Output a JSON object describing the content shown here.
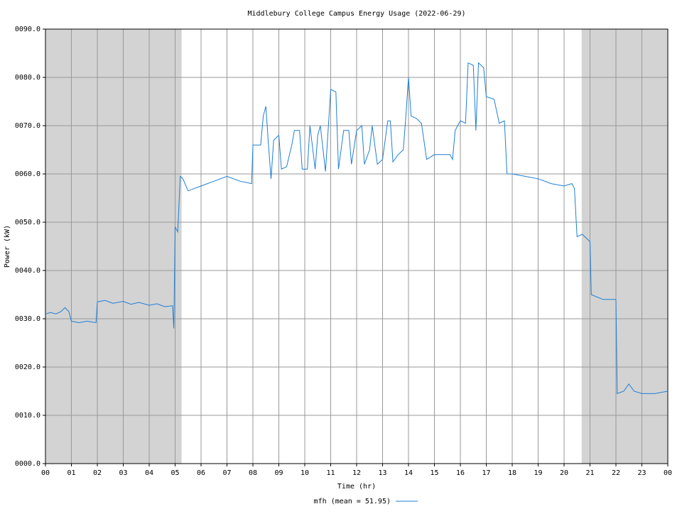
{
  "chart_data": {
    "type": "line",
    "title": "Middlebury College Campus Energy Usage (2022-06-29)",
    "x_label": "Time (hr)",
    "y_label": "Power (kW)",
    "xlim": [
      0,
      24
    ],
    "ylim": [
      0,
      90
    ],
    "xticks": [
      {
        "value": 0,
        "label": "00"
      },
      {
        "value": 1,
        "label": "01"
      },
      {
        "value": 2,
        "label": "02"
      },
      {
        "value": 3,
        "label": "03"
      },
      {
        "value": 4,
        "label": "04"
      },
      {
        "value": 5,
        "label": "05"
      },
      {
        "value": 6,
        "label": "06"
      },
      {
        "value": 7,
        "label": "07"
      },
      {
        "value": 8,
        "label": "08"
      },
      {
        "value": 9,
        "label": "09"
      },
      {
        "value": 10,
        "label": "10"
      },
      {
        "value": 11,
        "label": "11"
      },
      {
        "value": 12,
        "label": "12"
      },
      {
        "value": 13,
        "label": "13"
      },
      {
        "value": 14,
        "label": "14"
      },
      {
        "value": 15,
        "label": "15"
      },
      {
        "value": 16,
        "label": "16"
      },
      {
        "value": 17,
        "label": "17"
      },
      {
        "value": 18,
        "label": "18"
      },
      {
        "value": 19,
        "label": "19"
      },
      {
        "value": 20,
        "label": "20"
      },
      {
        "value": 21,
        "label": "21"
      },
      {
        "value": 22,
        "label": "22"
      },
      {
        "value": 23,
        "label": "23"
      },
      {
        "value": 24,
        "label": "00"
      }
    ],
    "yticks": [
      {
        "value": 0,
        "label": "0000.0"
      },
      {
        "value": 10,
        "label": "0010.0"
      },
      {
        "value": 20,
        "label": "0020.0"
      },
      {
        "value": 30,
        "label": "0030.0"
      },
      {
        "value": 40,
        "label": "0040.0"
      },
      {
        "value": 50,
        "label": "0050.0"
      },
      {
        "value": 60,
        "label": "0060.0"
      },
      {
        "value": 70,
        "label": "0070.0"
      },
      {
        "value": 80,
        "label": "0080.0"
      },
      {
        "value": 90,
        "label": "0090.0"
      }
    ],
    "grid": true,
    "shaded_regions": [
      [
        0,
        5.25
      ],
      [
        20.68,
        24
      ]
    ],
    "shade_color": "#d3d3d3",
    "x": [
      0,
      0.2,
      0.4,
      0.6,
      0.75,
      0.9,
      1.0,
      1.3,
      1.6,
      1.95,
      2.0,
      2.3,
      2.6,
      3.0,
      3.3,
      3.6,
      4.0,
      4.3,
      4.6,
      4.9,
      4.95,
      5.0,
      5.1,
      5.2,
      5.3,
      5.5,
      6.0,
      6.5,
      7.0,
      7.5,
      7.95,
      8.0,
      8.3,
      8.4,
      8.5,
      8.6,
      8.7,
      8.8,
      9.0,
      9.1,
      9.3,
      9.5,
      9.6,
      9.8,
      9.9,
      10.1,
      10.2,
      10.4,
      10.5,
      10.6,
      10.8,
      11.0,
      11.2,
      11.3,
      11.5,
      11.7,
      11.8,
      12.0,
      12.2,
      12.3,
      12.5,
      12.6,
      12.8,
      13.0,
      13.2,
      13.3,
      13.4,
      13.6,
      13.8,
      13.9,
      14.0,
      14.1,
      14.3,
      14.5,
      14.7,
      15.0,
      15.3,
      15.6,
      15.7,
      15.8,
      16.0,
      16.2,
      16.3,
      16.5,
      16.6,
      16.7,
      16.9,
      17.0,
      17.3,
      17.5,
      17.7,
      17.8,
      18.0,
      18.5,
      19.0,
      19.5,
      20.0,
      20.3,
      20.4,
      20.5,
      20.7,
      21.0,
      21.05,
      21.5,
      22.0,
      22.05,
      22.3,
      22.5,
      22.7,
      23.0,
      23.5,
      24.0
    ],
    "series": [
      {
        "name": "mfh (mean = 51.95)",
        "color": "#1f7fd6",
        "values": [
          31,
          31.3,
          31,
          31.5,
          32.3,
          31.5,
          29.5,
          29.2,
          29.5,
          29.2,
          33.5,
          33.8,
          33.2,
          33.6,
          33,
          33.4,
          32.8,
          33.1,
          32.5,
          32.7,
          28,
          49,
          48,
          59.5,
          59,
          56.5,
          57.5,
          58.5,
          59.5,
          58.5,
          58,
          66,
          66,
          72,
          74,
          66,
          59,
          67,
          68,
          61,
          61.5,
          66,
          69,
          69,
          61,
          61,
          70,
          61,
          68,
          70,
          60.5,
          77.5,
          77,
          61,
          69,
          69,
          62,
          69,
          70,
          62,
          65,
          70,
          62,
          63,
          71,
          71,
          62.5,
          64,
          65,
          72,
          80,
          72,
          71.5,
          70.5,
          63,
          64,
          64,
          64,
          63,
          69,
          71,
          70.5,
          83,
          82.5,
          69,
          83,
          82,
          76,
          75.5,
          70.5,
          71,
          60,
          60,
          59.5,
          59,
          58,
          57.5,
          58,
          57,
          47,
          47.5,
          46,
          35,
          34,
          34,
          14.5,
          15,
          16.5,
          15,
          14.5,
          14.5,
          15
        ]
      }
    ]
  }
}
